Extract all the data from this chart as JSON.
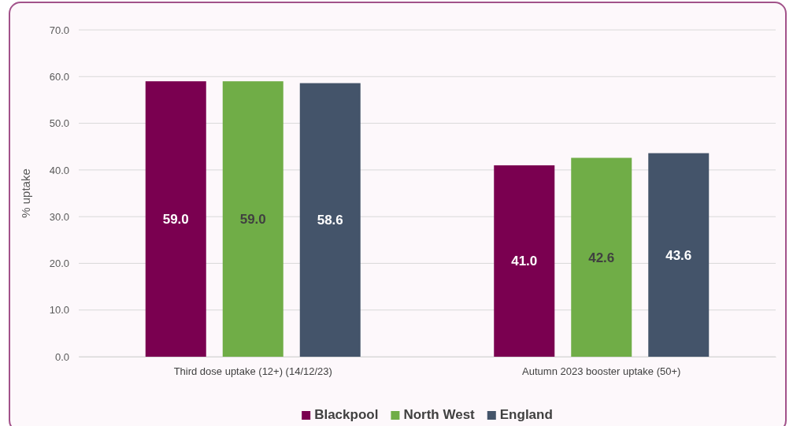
{
  "chart_data": {
    "type": "bar",
    "ylabel": "% uptake",
    "categories": [
      "Third dose uptake (12+) (14/12/23)",
      "Autumn 2023 booster uptake (50+)"
    ],
    "series": [
      {
        "name": "Blackpool",
        "color": "#7a0050",
        "values": [
          59.0,
          41.0
        ],
        "value_labels": [
          "59.0",
          "41.0"
        ]
      },
      {
        "name": "North West",
        "color": "#70ad47",
        "values": [
          59.0,
          42.6
        ],
        "value_labels": [
          "59.0",
          "42.6"
        ]
      },
      {
        "name": "England",
        "color": "#44546a",
        "values": [
          58.6,
          43.6
        ],
        "value_labels": [
          "58.6",
          "43.6"
        ]
      }
    ],
    "ylim": [
      0,
      70
    ],
    "yticks": [
      {
        "value": 0,
        "label": "0.0"
      },
      {
        "value": 10,
        "label": "10.0"
      },
      {
        "value": 20,
        "label": "20.0"
      },
      {
        "value": 30,
        "label": "30.0"
      },
      {
        "value": 40,
        "label": "40.0"
      },
      {
        "value": 50,
        "label": "50.0"
      },
      {
        "value": 60,
        "label": "60.0"
      },
      {
        "value": 70,
        "label": "70.0"
      }
    ],
    "grid": "y",
    "legend": "bottom"
  }
}
